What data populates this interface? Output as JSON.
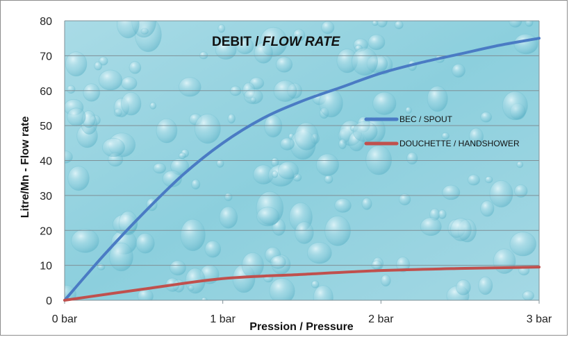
{
  "chart_data": {
    "type": "line",
    "title": "DEBIT / ",
    "title_italic": "FLOW RATE",
    "xlabel": "Pression / Pressure",
    "ylabel": "Litre/Mn - Flow rate",
    "categories": [
      "0 bar",
      "1 bar",
      "2 bar",
      "3 bar"
    ],
    "x_range": [
      0,
      3
    ],
    "ylim": [
      0,
      80
    ],
    "y_ticks": [
      0,
      10,
      20,
      30,
      40,
      50,
      60,
      70,
      80
    ],
    "grid": true,
    "background": "water droplets texture",
    "legend_position": "right",
    "series": [
      {
        "name": "BEC / SPOUT",
        "color": "#4a7bc4",
        "x": [
          0,
          0.25,
          0.5,
          0.75,
          1,
          1.25,
          1.5,
          1.75,
          2,
          2.25,
          2.5,
          2.75,
          3
        ],
        "values": [
          0,
          13,
          25,
          36,
          45,
          52,
          57,
          61,
          65,
          68,
          70.5,
          73,
          75
        ]
      },
      {
        "name": "DOUCHETTE / HANDSHOWER",
        "color": "#c0504d",
        "x": [
          0,
          0.5,
          1,
          1.5,
          2,
          2.5,
          3
        ],
        "values": [
          0,
          3.2,
          6.2,
          7.4,
          8.5,
          9.1,
          9.5
        ]
      }
    ]
  }
}
